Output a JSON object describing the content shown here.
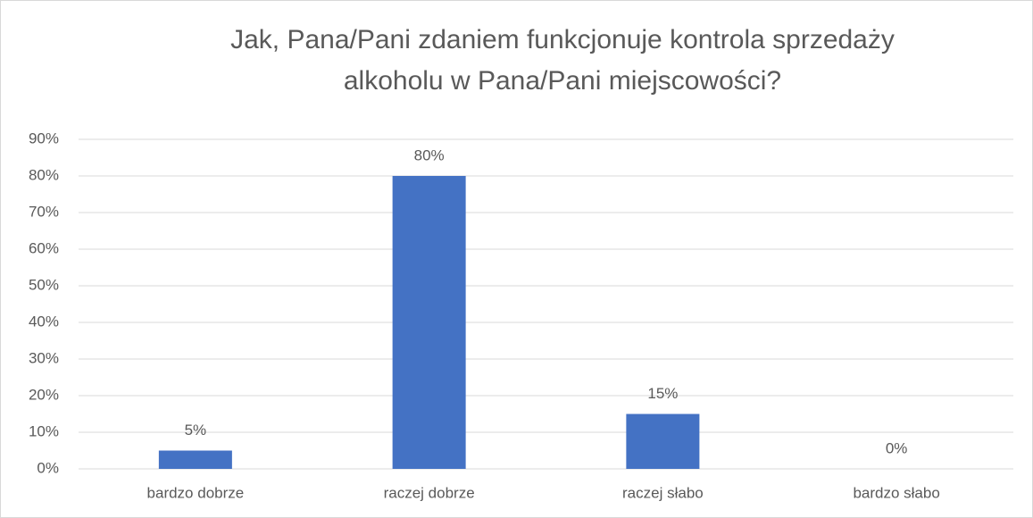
{
  "chart_data": {
    "type": "bar",
    "title": "Jak, Pana/Pani zdaniem funkcjonuje kontrola sprzedaży alkoholu w Pana/Pani miejscowości?",
    "categories": [
      "bardzo dobrze",
      "raczej dobrze",
      "raczej słabo",
      "bardzo słabo"
    ],
    "values": [
      5,
      80,
      15,
      0
    ],
    "value_labels": [
      "5%",
      "80%",
      "15%",
      "0%"
    ],
    "color": "#4472c4",
    "ylim": [
      0,
      90
    ],
    "yticks": [
      {
        "value": 0,
        "label": "0%"
      },
      {
        "value": 10,
        "label": "10%"
      },
      {
        "value": 20,
        "label": "20%"
      },
      {
        "value": 30,
        "label": "30%"
      },
      {
        "value": 40,
        "label": "40%"
      },
      {
        "value": 50,
        "label": "50%"
      },
      {
        "value": 60,
        "label": "60%"
      },
      {
        "value": 70,
        "label": "70%"
      },
      {
        "value": 80,
        "label": "80%"
      },
      {
        "value": 90,
        "label": "90%"
      }
    ],
    "grid": true
  }
}
